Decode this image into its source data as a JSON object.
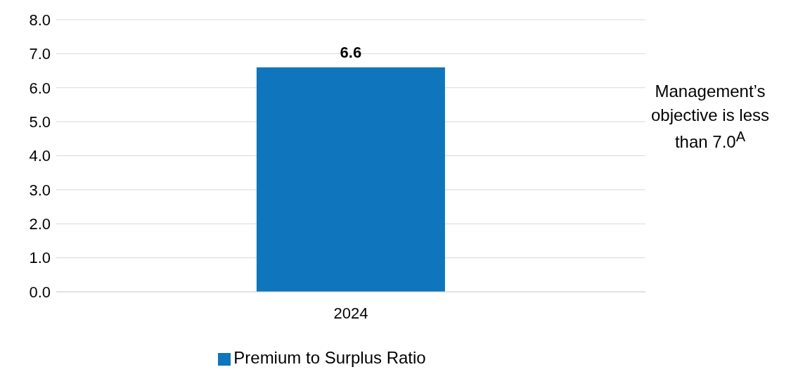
{
  "chart_data": {
    "type": "bar",
    "categories": [
      "2024"
    ],
    "series": [
      {
        "name": "Premium to Surplus Ratio",
        "color": "#0f75bc",
        "values": [
          6.6
        ]
      }
    ],
    "ylim": [
      0,
      8
    ],
    "yticks": [
      {
        "value": 0,
        "label": "0.0"
      },
      {
        "value": 1,
        "label": "1.0"
      },
      {
        "value": 2,
        "label": "2.0"
      },
      {
        "value": 3,
        "label": "3.0"
      },
      {
        "value": 4,
        "label": "4.0"
      },
      {
        "value": 5,
        "label": "5.0"
      },
      {
        "value": 6,
        "label": "6.0"
      },
      {
        "value": 7,
        "label": "7.0"
      },
      {
        "value": 8,
        "label": "8.0"
      }
    ],
    "grid": "y",
    "legend": "bottom",
    "data_labels": true,
    "annotations": [
      "Management’s objective is less than 7.0$^{A}$"
    ]
  }
}
